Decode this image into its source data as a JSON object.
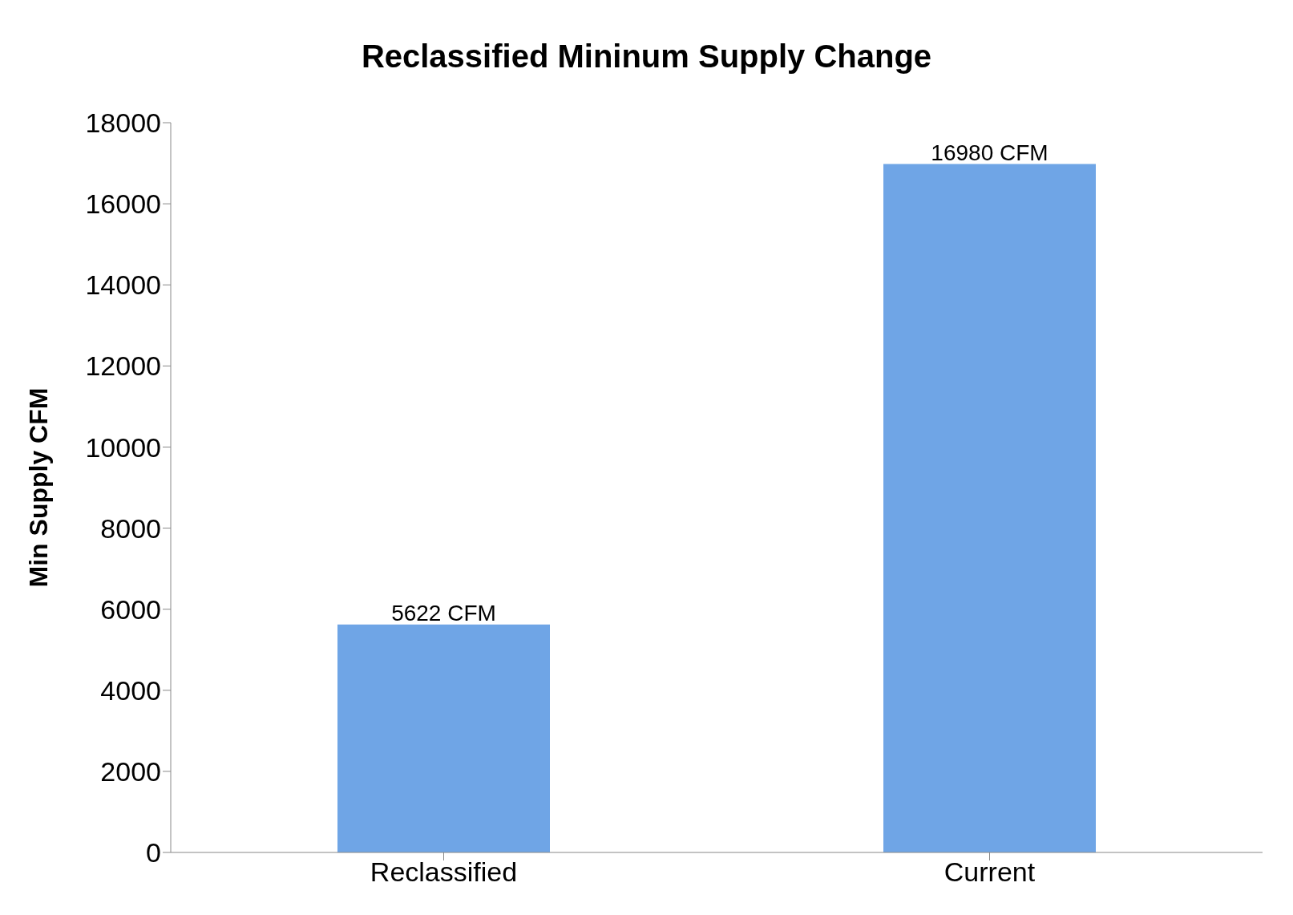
{
  "chart_data": {
    "type": "bar",
    "title": "Reclassified Mininum Supply Change",
    "ylabel": "Min Supply CFM",
    "categories": [
      "Reclassified",
      "Current"
    ],
    "values": [
      5622,
      16980
    ],
    "value_labels": [
      "5622 CFM",
      "16980 CFM"
    ],
    "color": "#6fa5e6",
    "ylim": [
      0,
      18000
    ],
    "yticks": [
      0,
      2000,
      4000,
      6000,
      8000,
      10000,
      12000,
      14000,
      16000,
      18000
    ],
    "grid": false,
    "legend": false
  }
}
